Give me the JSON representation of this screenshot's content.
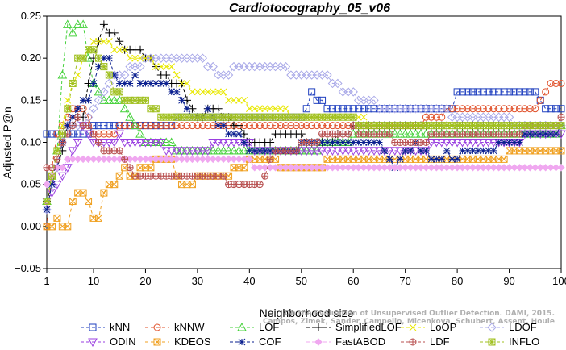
{
  "chart_data": {
    "type": "line",
    "title": "Cardiotocography_05_v06",
    "xlabel": "Neighborhood size",
    "ylabel": "Adjusted P@n",
    "xlim": [
      1,
      100
    ],
    "ylim": [
      -0.05,
      0.25
    ],
    "xticks": [
      1,
      10,
      20,
      30,
      40,
      50,
      60,
      70,
      80,
      90,
      100
    ],
    "yticks": [
      -0.05,
      0.0,
      0.05,
      0.1,
      0.15,
      0.2,
      0.25
    ],
    "ytick_labels": [
      "−0.05",
      "0.00",
      "0.05",
      "0.10",
      "0.15",
      "0.20",
      "0.25"
    ],
    "grid": false,
    "legend_position": "bottom",
    "watermark": [
      "On the Evaluation of Unsupervised Outlier Detection. DAMI, 2015.",
      "Campos, Zimek, Sander, Campello, Micenkova, Schubert, Assent, Houle"
    ],
    "series": [
      {
        "name": "kNN",
        "color": "#1f3fbf",
        "marker": "square",
        "points": [
          [
            1,
            0.105
          ],
          [
            5,
            0.105
          ],
          [
            10,
            0.115
          ],
          [
            20,
            0.118
          ],
          [
            30,
            0.13
          ],
          [
            40,
            0.13
          ],
          [
            50,
            0.13
          ],
          [
            52,
            0.155
          ],
          [
            56,
            0.14
          ],
          [
            70,
            0.14
          ],
          [
            79,
            0.14
          ],
          [
            80,
            0.155
          ],
          [
            95,
            0.155
          ],
          [
            97,
            0.14
          ],
          [
            100,
            0.14
          ]
        ]
      },
      {
        "name": "kNNW",
        "color": "#e0502a",
        "marker": "circle",
        "points": [
          [
            1,
            -0.003
          ],
          [
            2,
            0.07
          ],
          [
            3,
            0.105
          ],
          [
            5,
            0.13
          ],
          [
            6,
            0.14
          ],
          [
            8,
            0.14
          ],
          [
            10,
            0.11
          ],
          [
            15,
            0.115
          ],
          [
            20,
            0.118
          ],
          [
            30,
            0.118
          ],
          [
            40,
            0.118
          ],
          [
            50,
            0.118
          ],
          [
            60,
            0.118
          ],
          [
            70,
            0.118
          ],
          [
            80,
            0.14
          ],
          [
            90,
            0.14
          ],
          [
            95,
            0.14
          ],
          [
            98,
            0.165
          ],
          [
            100,
            0.165
          ]
        ]
      },
      {
        "name": "LOF",
        "color": "#44d13a",
        "marker": "triangle",
        "points": [
          [
            1,
            0.03
          ],
          [
            3,
            0.09
          ],
          [
            4,
            0.18
          ],
          [
            5,
            0.24
          ],
          [
            6,
            0.23
          ],
          [
            7,
            0.24
          ],
          [
            8,
            0.24
          ],
          [
            9,
            0.2
          ],
          [
            10,
            0.17
          ],
          [
            12,
            0.15
          ],
          [
            15,
            0.15
          ],
          [
            18,
            0.12
          ],
          [
            20,
            0.1
          ],
          [
            22,
            0.095
          ],
          [
            25,
            0.095
          ],
          [
            30,
            0.09
          ],
          [
            35,
            0.085
          ],
          [
            40,
            0.085
          ],
          [
            50,
            0.085
          ],
          [
            55,
            0.1
          ],
          [
            60,
            0.105
          ],
          [
            65,
            0.105
          ],
          [
            70,
            0.105
          ],
          [
            80,
            0.105
          ],
          [
            90,
            0.11
          ],
          [
            95,
            0.11
          ],
          [
            100,
            0.115
          ]
        ]
      },
      {
        "name": "SimplifiedLOF",
        "color": "#000000",
        "marker": "plus",
        "points": [
          [
            1,
            0.03
          ],
          [
            3,
            0.07
          ],
          [
            5,
            0.115
          ],
          [
            8,
            0.13
          ],
          [
            10,
            0.2
          ],
          [
            12,
            0.235
          ],
          [
            14,
            0.225
          ],
          [
            16,
            0.21
          ],
          [
            19,
            0.21
          ],
          [
            20,
            0.2
          ],
          [
            22,
            0.19
          ],
          [
            25,
            0.17
          ],
          [
            27,
            0.165
          ],
          [
            28,
            0.15
          ],
          [
            30,
            0.13
          ],
          [
            33,
            0.14
          ],
          [
            35,
            0.13
          ],
          [
            38,
            0.12
          ],
          [
            40,
            0.1
          ],
          [
            45,
            0.105
          ],
          [
            50,
            0.105
          ],
          [
            55,
            0.1
          ],
          [
            60,
            0.115
          ],
          [
            70,
            0.115
          ],
          [
            80,
            0.115
          ],
          [
            90,
            0.115
          ],
          [
            100,
            0.115
          ]
        ]
      },
      {
        "name": "LoOP",
        "color": "#e8e800",
        "marker": "cross",
        "points": [
          [
            1,
            0.03
          ],
          [
            3,
            0.085
          ],
          [
            5,
            0.15
          ],
          [
            8,
            0.2
          ],
          [
            10,
            0.22
          ],
          [
            12,
            0.22
          ],
          [
            15,
            0.21
          ],
          [
            18,
            0.2
          ],
          [
            20,
            0.2
          ],
          [
            22,
            0.19
          ],
          [
            25,
            0.185
          ],
          [
            27,
            0.17
          ],
          [
            30,
            0.16
          ],
          [
            35,
            0.155
          ],
          [
            40,
            0.145
          ],
          [
            45,
            0.14
          ],
          [
            50,
            0.13
          ],
          [
            55,
            0.13
          ],
          [
            60,
            0.13
          ],
          [
            65,
            0.12
          ],
          [
            70,
            0.12
          ],
          [
            80,
            0.12
          ],
          [
            90,
            0.12
          ],
          [
            100,
            0.12
          ]
        ]
      },
      {
        "name": "LDOF",
        "color": "#a9a9e8",
        "marker": "diamond",
        "points": [
          [
            1,
            0.02
          ],
          [
            3,
            0.07
          ],
          [
            5,
            0.12
          ],
          [
            8,
            0.12
          ],
          [
            10,
            0.14
          ],
          [
            14,
            0.175
          ],
          [
            18,
            0.19
          ],
          [
            20,
            0.195
          ],
          [
            25,
            0.2
          ],
          [
            30,
            0.2
          ],
          [
            33,
            0.185
          ],
          [
            35,
            0.175
          ],
          [
            38,
            0.19
          ],
          [
            42,
            0.19
          ],
          [
            46,
            0.19
          ],
          [
            50,
            0.175
          ],
          [
            55,
            0.175
          ],
          [
            58,
            0.16
          ],
          [
            62,
            0.15
          ],
          [
            66,
            0.14
          ],
          [
            70,
            0.135
          ],
          [
            75,
            0.145
          ],
          [
            80,
            0.13
          ],
          [
            85,
            0.125
          ],
          [
            90,
            0.125
          ],
          [
            95,
            0.12
          ],
          [
            100,
            0.12
          ]
        ]
      },
      {
        "name": "ODIN",
        "color": "#9a3fe0",
        "marker": "triangle-down",
        "points": [
          [
            1,
            0.03
          ],
          [
            3,
            0.05
          ],
          [
            5,
            0.07
          ],
          [
            8,
            0.12
          ],
          [
            10,
            0.1
          ],
          [
            15,
            0.105
          ],
          [
            20,
            0.103
          ],
          [
            22,
            0.098
          ],
          [
            25,
            0.09
          ],
          [
            30,
            0.09
          ],
          [
            35,
            0.1
          ],
          [
            40,
            0.095
          ],
          [
            45,
            0.09
          ],
          [
            50,
            0.09
          ],
          [
            55,
            0.09
          ],
          [
            60,
            0.09
          ],
          [
            65,
            0.09
          ],
          [
            70,
            0.09
          ],
          [
            75,
            0.095
          ],
          [
            80,
            0.095
          ],
          [
            85,
            0.1
          ],
          [
            90,
            0.1
          ],
          [
            95,
            0.11
          ],
          [
            100,
            0.11
          ]
        ]
      },
      {
        "name": "KDEOS",
        "color": "#f0a020",
        "marker": "square-x",
        "points": [
          [
            1,
            -0.005
          ],
          [
            2,
            0.0
          ],
          [
            3,
            0.005
          ],
          [
            5,
            -0.003
          ],
          [
            6,
            0.03
          ],
          [
            8,
            0.04
          ],
          [
            10,
            0.01
          ],
          [
            11,
            0.01
          ],
          [
            12,
            0.04
          ],
          [
            14,
            0.05
          ],
          [
            16,
            0.07
          ],
          [
            17,
            0.06
          ],
          [
            20,
            0.07
          ],
          [
            22,
            0.075
          ],
          [
            25,
            0.08
          ],
          [
            27,
            0.045
          ],
          [
            30,
            0.055
          ],
          [
            35,
            0.06
          ],
          [
            40,
            0.075
          ],
          [
            45,
            0.075
          ],
          [
            50,
            0.07
          ],
          [
            55,
            0.075
          ],
          [
            60,
            0.075
          ],
          [
            65,
            0.075
          ],
          [
            70,
            0.075
          ],
          [
            75,
            0.075
          ],
          [
            80,
            0.08
          ],
          [
            90,
            0.085
          ],
          [
            100,
            0.085
          ]
        ]
      },
      {
        "name": "COF",
        "color": "#0a1f8f",
        "marker": "asterisk",
        "points": [
          [
            1,
            0.02
          ],
          [
            3,
            0.07
          ],
          [
            5,
            0.12
          ],
          [
            7,
            0.14
          ],
          [
            9,
            0.15
          ],
          [
            11,
            0.19
          ],
          [
            13,
            0.2
          ],
          [
            14,
            0.18
          ],
          [
            16,
            0.165
          ],
          [
            18,
            0.175
          ],
          [
            20,
            0.165
          ],
          [
            24,
            0.165
          ],
          [
            26,
            0.155
          ],
          [
            28,
            0.14
          ],
          [
            30,
            0.125
          ],
          [
            32,
            0.135
          ],
          [
            35,
            0.115
          ],
          [
            38,
            0.11
          ],
          [
            40,
            0.09
          ],
          [
            42,
            0.085
          ],
          [
            46,
            0.085
          ],
          [
            50,
            0.095
          ],
          [
            55,
            0.1
          ],
          [
            60,
            0.1
          ],
          [
            65,
            0.1
          ],
          [
            68,
            0.07
          ],
          [
            72,
            0.1
          ],
          [
            75,
            0.08
          ],
          [
            78,
            0.085
          ],
          [
            80,
            0.08
          ],
          [
            82,
            0.09
          ],
          [
            86,
            0.09
          ],
          [
            90,
            0.1
          ],
          [
            95,
            0.11
          ],
          [
            100,
            0.115
          ]
        ]
      },
      {
        "name": "FastABOD",
        "color": "#f0a8f0",
        "marker": "diamond-filled",
        "points": [
          [
            1,
            0.05
          ],
          [
            3,
            0.065
          ],
          [
            5,
            0.075
          ],
          [
            8,
            0.08
          ],
          [
            10,
            0.08
          ],
          [
            15,
            0.08
          ],
          [
            20,
            0.075
          ],
          [
            25,
            0.075
          ],
          [
            30,
            0.075
          ],
          [
            40,
            0.075
          ],
          [
            50,
            0.07
          ],
          [
            60,
            0.07
          ],
          [
            70,
            0.07
          ],
          [
            80,
            0.07
          ],
          [
            90,
            0.07
          ],
          [
            100,
            0.07
          ]
        ]
      },
      {
        "name": "LDF",
        "color": "#b85050",
        "marker": "circle-plus",
        "points": [
          [
            1,
            0.065
          ],
          [
            3,
            0.08
          ],
          [
            5,
            0.11
          ],
          [
            7,
            0.13
          ],
          [
            9,
            0.115
          ],
          [
            11,
            0.1
          ],
          [
            13,
            0.085
          ],
          [
            15,
            0.085
          ],
          [
            18,
            0.055
          ],
          [
            20,
            0.055
          ],
          [
            25,
            0.055
          ],
          [
            30,
            0.055
          ],
          [
            35,
            0.055
          ],
          [
            38,
            0.045
          ],
          [
            40,
            0.045
          ],
          [
            42,
            0.05
          ],
          [
            45,
            0.09
          ],
          [
            50,
            0.095
          ],
          [
            55,
            0.11
          ],
          [
            60,
            0.115
          ],
          [
            65,
            0.11
          ],
          [
            70,
            0.1
          ],
          [
            75,
            0.105
          ],
          [
            80,
            0.105
          ],
          [
            85,
            0.105
          ],
          [
            90,
            0.11
          ],
          [
            95,
            0.12
          ],
          [
            100,
            0.125
          ]
        ]
      },
      {
        "name": "INFLO",
        "color": "#a0c020",
        "marker": "star-box",
        "points": [
          [
            1,
            0.03
          ],
          [
            3,
            0.085
          ],
          [
            5,
            0.14
          ],
          [
            7,
            0.195
          ],
          [
            9,
            0.21
          ],
          [
            11,
            0.2
          ],
          [
            13,
            0.175
          ],
          [
            15,
            0.155
          ],
          [
            17,
            0.15
          ],
          [
            20,
            0.15
          ],
          [
            22,
            0.135
          ],
          [
            25,
            0.13
          ],
          [
            28,
            0.125
          ],
          [
            30,
            0.125
          ],
          [
            35,
            0.125
          ],
          [
            40,
            0.125
          ],
          [
            45,
            0.125
          ],
          [
            50,
            0.125
          ],
          [
            55,
            0.125
          ],
          [
            60,
            0.125
          ],
          [
            65,
            0.115
          ],
          [
            70,
            0.115
          ],
          [
            80,
            0.115
          ],
          [
            90,
            0.115
          ],
          [
            100,
            0.115
          ]
        ]
      }
    ]
  }
}
